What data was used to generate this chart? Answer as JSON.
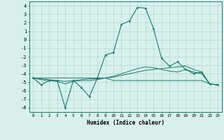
{
  "xlabel": "Humidex (Indice chaleur)",
  "x": [
    0,
    1,
    2,
    3,
    4,
    5,
    6,
    7,
    8,
    9,
    10,
    11,
    12,
    13,
    14,
    15,
    16,
    17,
    18,
    19,
    20,
    21,
    22,
    23
  ],
  "line1": [
    -4.5,
    -5.3,
    -4.8,
    -4.8,
    -8.0,
    -4.8,
    -5.6,
    -6.7,
    -4.5,
    -1.8,
    -1.5,
    1.8,
    2.2,
    3.8,
    3.7,
    1.3,
    -2.2,
    -3.1,
    -2.6,
    -3.5,
    -4.0,
    -3.8,
    -5.2,
    -5.3
  ],
  "line2": [
    -4.5,
    -4.5,
    -4.5,
    -4.5,
    -4.5,
    -4.5,
    -4.5,
    -4.5,
    -4.5,
    -4.5,
    -4.8,
    -4.8,
    -4.8,
    -4.8,
    -4.8,
    -4.8,
    -4.8,
    -4.8,
    -4.8,
    -4.8,
    -4.8,
    -4.8,
    -5.2,
    -5.3
  ],
  "line3": [
    -4.5,
    -4.6,
    -4.7,
    -4.8,
    -4.9,
    -4.8,
    -4.7,
    -4.6,
    -4.6,
    -4.5,
    -4.4,
    -4.2,
    -4.0,
    -3.8,
    -3.6,
    -3.5,
    -3.4,
    -3.3,
    -3.2,
    -3.1,
    -3.5,
    -3.8,
    -5.2,
    -5.3
  ],
  "line4": [
    -4.5,
    -4.7,
    -4.8,
    -4.9,
    -5.2,
    -4.9,
    -4.8,
    -4.8,
    -4.7,
    -4.5,
    -4.3,
    -4.0,
    -3.7,
    -3.4,
    -3.2,
    -3.3,
    -3.5,
    -3.7,
    -3.8,
    -3.5,
    -3.8,
    -4.0,
    -5.2,
    -5.3
  ],
  "ylim": [
    -8.5,
    4.5
  ],
  "xlim": [
    -0.5,
    23.5
  ],
  "yticks": [
    -8,
    -7,
    -6,
    -5,
    -4,
    -3,
    -2,
    -1,
    0,
    1,
    2,
    3,
    4
  ],
  "xticks": [
    0,
    1,
    2,
    3,
    4,
    5,
    6,
    7,
    8,
    9,
    10,
    11,
    12,
    13,
    14,
    15,
    16,
    17,
    18,
    19,
    20,
    21,
    22,
    23
  ],
  "line_color": "#1a7a6e",
  "bg_color": "#d8f0ec",
  "grid_color": "#b0d8d2"
}
